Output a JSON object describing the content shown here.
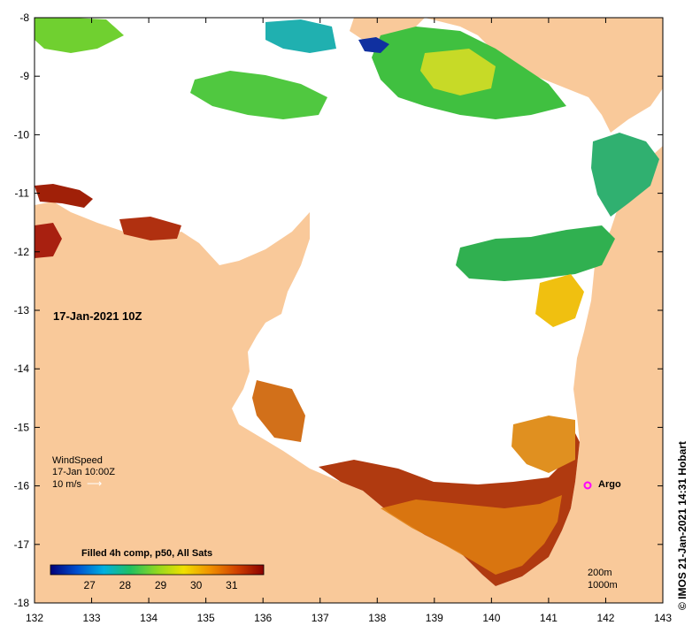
{
  "map": {
    "lon_ticks": [
      "132",
      "133",
      "134",
      "135",
      "136",
      "137",
      "138",
      "139",
      "140",
      "141",
      "142",
      "143"
    ],
    "lat_ticks": [
      "-8",
      "-9",
      "-10",
      "-11",
      "-12",
      "-13",
      "-14",
      "-15",
      "-16",
      "-17",
      "-18"
    ],
    "land_color": "#f9c99a",
    "date_label": "17-Jan-2021 10Z"
  },
  "wind": {
    "title": "WindSpeed",
    "time": "17-Jan 10:00Z",
    "scale": "10 m/s"
  },
  "legend": {
    "title": "Filled 4h comp, p50, All Sats",
    "ticks": [
      "27",
      "28",
      "29",
      "30",
      "31"
    ],
    "colors": [
      "#00007a",
      "#0050d0",
      "#00b0e0",
      "#20c060",
      "#90d820",
      "#f0e000",
      "#f09000",
      "#d04000",
      "#8a0000"
    ]
  },
  "contours": {
    "line1": "200m",
    "line2": "1000m"
  },
  "argo": {
    "label": "Argo",
    "color": "#ff00ff"
  },
  "credit": "© IMOS 21-Jan-2021 14:31 Hobart"
}
